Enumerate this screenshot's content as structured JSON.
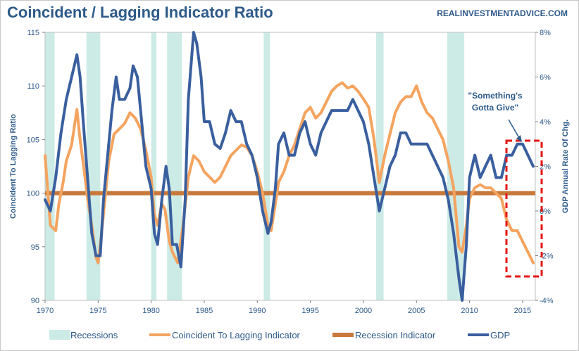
{
  "header": {
    "title": "Coincident / Lagging Indicator Ratio",
    "source": "REALINVESTMENTADVICE.COM"
  },
  "chart_data": {
    "type": "line",
    "title": "Coincident / Lagging Indicator Ratio",
    "xlabel": "",
    "ylabel": "Coincident To Lagging Ratio",
    "y2label": "GDP Annual Rate Of Chg.",
    "xlim": [
      1970,
      2016.2
    ],
    "ylim": [
      90,
      115
    ],
    "y2lim": [
      -4,
      8
    ],
    "x_ticks": [
      1970,
      1975,
      1980,
      1985,
      1990,
      1995,
      2000,
      2005,
      2010,
      2015
    ],
    "y_ticks": [
      90,
      95,
      100,
      105,
      110,
      115
    ],
    "y2_ticks": [
      -4,
      -2,
      0,
      2,
      4,
      6,
      8
    ],
    "y2_tick_labels": [
      "-4%",
      "-2%",
      "0%",
      "2%",
      "4%",
      "6%",
      "8%"
    ],
    "legend_placement": "bottom",
    "recessions": [
      [
        1969.9,
        1970.9
      ],
      [
        1973.9,
        1975.2
      ],
      [
        1980.0,
        1980.5
      ],
      [
        1981.5,
        1982.9
      ],
      [
        1990.6,
        1991.2
      ],
      [
        2001.2,
        2001.9
      ],
      [
        2007.9,
        2009.5
      ]
    ],
    "recession_indicator": 100,
    "series": [
      {
        "name": "Coincident To Lagging Indicator",
        "axis": "left",
        "x": [
          1970.0,
          1970.5,
          1971.0,
          1971.3,
          1971.7,
          1972.0,
          1972.5,
          1972.8,
          1973.0,
          1973.3,
          1973.7,
          1974.0,
          1974.4,
          1974.8,
          1975.0,
          1975.3,
          1975.6,
          1976.0,
          1976.5,
          1977.0,
          1977.5,
          1978.0,
          1978.5,
          1979.0,
          1979.5,
          1980.0,
          1980.3,
          1980.6,
          1981.0,
          1981.3,
          1981.7,
          1982.0,
          1982.5,
          1983.0,
          1983.5,
          1984.0,
          1984.5,
          1985.0,
          1985.5,
          1986.0,
          1986.5,
          1987.0,
          1987.5,
          1988.0,
          1988.5,
          1989.0,
          1989.5,
          1990.0,
          1990.5,
          1991.0,
          1991.3,
          1991.7,
          1992.0,
          1992.5,
          1993.0,
          1993.5,
          1994.0,
          1994.5,
          1995.0,
          1995.5,
          1996.0,
          1996.5,
          1997.0,
          1997.5,
          1998.0,
          1998.5,
          1999.0,
          1999.5,
          2000.0,
          2000.5,
          2001.0,
          2001.5,
          2002.0,
          2002.5,
          2003.0,
          2003.5,
          2004.0,
          2004.5,
          2005.0,
          2005.5,
          2006.0,
          2006.5,
          2007.0,
          2007.5,
          2008.0,
          2008.5,
          2009.0,
          2009.3,
          2009.7,
          2010.0,
          2010.5,
          2011.0,
          2011.5,
          2012.0,
          2012.5,
          2013.0,
          2013.5,
          2014.0,
          2014.5,
          2015.0,
          2015.5,
          2016.0
        ],
        "values": [
          103.5,
          97.0,
          96.5,
          99.0,
          101.0,
          103.0,
          104.5,
          106.5,
          107.8,
          105.0,
          102.0,
          99.5,
          97.0,
          94.0,
          93.5,
          96.0,
          99.0,
          103.0,
          105.5,
          106.0,
          106.5,
          107.5,
          107.0,
          106.0,
          104.0,
          101.5,
          98.0,
          97.0,
          99.0,
          98.5,
          95.5,
          94.5,
          93.5,
          97.0,
          101.5,
          103.5,
          103.0,
          102.0,
          101.5,
          101.0,
          101.5,
          102.5,
          103.5,
          104.0,
          104.5,
          104.3,
          103.5,
          102.0,
          100.0,
          97.0,
          96.5,
          99.0,
          101.0,
          102.0,
          103.5,
          104.5,
          106.0,
          107.5,
          108.0,
          107.0,
          107.5,
          108.5,
          109.5,
          110.0,
          110.3,
          109.8,
          110.0,
          109.5,
          108.8,
          108.0,
          105.0,
          101.0,
          103.5,
          105.5,
          107.5,
          108.5,
          109.0,
          109.0,
          110.0,
          108.5,
          107.5,
          107.0,
          106.0,
          105.0,
          103.0,
          100.5,
          95.0,
          94.5,
          97.0,
          99.5,
          100.5,
          100.8,
          100.5,
          100.5,
          100.0,
          99.5,
          97.5,
          96.5,
          96.5,
          95.5,
          94.5,
          93.5
        ]
      },
      {
        "name": "GDP",
        "axis": "right",
        "x": [
          1970.0,
          1970.5,
          1971.0,
          1971.5,
          1972.0,
          1972.5,
          1973.0,
          1973.3,
          1973.6,
          1974.0,
          1974.4,
          1974.8,
          1975.2,
          1975.5,
          1976.0,
          1976.3,
          1976.7,
          1977.0,
          1977.5,
          1978.0,
          1978.3,
          1978.7,
          1979.0,
          1979.5,
          1980.0,
          1980.3,
          1980.6,
          1981.0,
          1981.4,
          1981.7,
          1982.0,
          1982.4,
          1982.8,
          1983.2,
          1983.5,
          1984.0,
          1984.3,
          1984.7,
          1985.0,
          1985.5,
          1986.0,
          1986.5,
          1987.0,
          1987.5,
          1988.0,
          1988.5,
          1989.0,
          1989.5,
          1990.0,
          1990.5,
          1991.0,
          1991.3,
          1991.7,
          1992.0,
          1992.5,
          1993.0,
          1993.5,
          1994.0,
          1994.5,
          1995.0,
          1995.5,
          1996.0,
          1996.5,
          1997.0,
          1997.5,
          1998.0,
          1998.5,
          1999.0,
          1999.5,
          2000.0,
          2000.5,
          2001.0,
          2001.5,
          2002.0,
          2002.5,
          2003.0,
          2003.5,
          2004.0,
          2004.5,
          2005.0,
          2005.5,
          2006.0,
          2006.5,
          2007.0,
          2007.5,
          2008.0,
          2008.5,
          2009.0,
          2009.3,
          2009.7,
          2010.0,
          2010.5,
          2011.0,
          2011.5,
          2012.0,
          2012.5,
          2013.0,
          2013.5,
          2014.0,
          2014.5,
          2015.0,
          2015.5,
          2016.0
        ],
        "values": [
          0.5,
          0.0,
          1.5,
          3.5,
          5.0,
          6.0,
          7.0,
          6.0,
          4.0,
          1.5,
          -1.0,
          -2.0,
          -2.0,
          0.5,
          3.0,
          4.5,
          6.0,
          5.0,
          5.0,
          5.5,
          6.5,
          6.0,
          4.5,
          2.0,
          1.0,
          -1.0,
          -1.5,
          0.5,
          2.0,
          1.0,
          -1.5,
          -1.5,
          -2.5,
          0.5,
          5.0,
          8.0,
          7.5,
          6.0,
          4.0,
          4.0,
          3.0,
          2.8,
          3.5,
          4.5,
          4.0,
          4.0,
          3.0,
          2.5,
          1.5,
          0.0,
          -1.0,
          -0.5,
          1.0,
          3.0,
          3.5,
          2.5,
          2.5,
          3.5,
          4.0,
          3.0,
          2.5,
          3.5,
          4.0,
          4.5,
          4.5,
          4.5,
          4.5,
          5.0,
          4.5,
          4.0,
          3.0,
          1.5,
          0.0,
          1.0,
          2.0,
          2.5,
          3.5,
          3.5,
          3.0,
          3.0,
          3.0,
          3.0,
          2.5,
          2.0,
          1.5,
          0.5,
          -1.0,
          -3.0,
          -4.0,
          -1.5,
          1.5,
          2.5,
          1.5,
          2.0,
          2.5,
          1.5,
          1.5,
          2.5,
          2.5,
          3.0,
          3.0,
          2.5,
          2.0
        ]
      }
    ],
    "annotation": "\"Something's\nGotta Give\"",
    "legend": [
      {
        "name": "Recessions",
        "color": "#cdebe6"
      },
      {
        "name": "Coincident To Lagging Indicator",
        "color": "#f4a460"
      },
      {
        "name": "Recession Indicator",
        "color": "#c8783a"
      },
      {
        "name": "GDP",
        "color": "#3a5f9e"
      }
    ],
    "colors": {
      "ratio": "#f4a460",
      "gdp": "#3a5f9e",
      "indicator": "#c8783a",
      "recession": "#cdebe6",
      "highlight": "#e51616",
      "axis_text": "#2e5a8a"
    }
  }
}
